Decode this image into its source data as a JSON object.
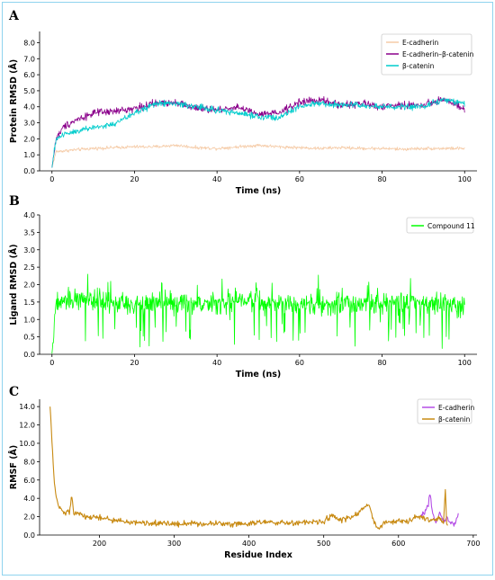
{
  "colors": {
    "frame": "#8fd3ee",
    "ecadherin_a": "#f5cba7",
    "complex_a": "#8b008b",
    "bcatenin_a": "#00cccc",
    "compound": "#00ff00",
    "ecadherin_c": "#b44de6",
    "bcatenin_c": "#c88a12"
  },
  "chart_data": [
    {
      "panel": "A",
      "type": "line",
      "xlabel": "Time (ns)",
      "ylabel": "Protein RMSD (Å)",
      "xlim": [
        -3,
        103
      ],
      "ylim": [
        0,
        8.7
      ],
      "xticks": [
        0,
        20,
        40,
        60,
        80,
        100
      ],
      "yticks": [
        0.0,
        1.0,
        2.0,
        3.0,
        4.0,
        5.0,
        6.0,
        7.0,
        8.0
      ],
      "xtick_labels": [
        "0",
        "20",
        "40",
        "60",
        "80",
        "100"
      ],
      "ytick_labels": [
        "0.0",
        "1.0",
        "2.0",
        "3.0",
        "4.0",
        "5.0",
        "6.0",
        "7.0",
        "8.0"
      ],
      "legend_position": "top-right",
      "grid": false,
      "series": [
        {
          "name": "E-cadherin",
          "color": "#f5cba7",
          "noise": 0.15,
          "x": [
            0,
            1,
            5,
            10,
            15,
            20,
            25,
            30,
            35,
            40,
            45,
            50,
            55,
            60,
            65,
            70,
            75,
            80,
            85,
            90,
            95,
            100
          ],
          "values": [
            0.2,
            1.2,
            1.3,
            1.4,
            1.45,
            1.5,
            1.5,
            1.6,
            1.45,
            1.4,
            1.5,
            1.6,
            1.5,
            1.45,
            1.4,
            1.45,
            1.4,
            1.4,
            1.35,
            1.4,
            1.4,
            1.4
          ]
        },
        {
          "name": "E-cadherin–β-catenin",
          "color": "#8b008b",
          "noise": 0.35,
          "x": [
            0,
            1,
            3,
            6,
            10,
            15,
            20,
            25,
            30,
            35,
            40,
            45,
            50,
            55,
            60,
            65,
            70,
            75,
            80,
            85,
            90,
            95,
            100
          ],
          "values": [
            0.2,
            2.0,
            2.8,
            3.2,
            3.6,
            3.7,
            3.9,
            4.2,
            4.3,
            3.9,
            3.8,
            4.0,
            3.5,
            3.6,
            4.3,
            4.4,
            4.1,
            4.2,
            4.0,
            4.1,
            4.1,
            4.5,
            3.8
          ]
        },
        {
          "name": "β-catenin",
          "color": "#00cccc",
          "noise": 0.3,
          "x": [
            0,
            1,
            3,
            6,
            10,
            15,
            20,
            25,
            30,
            35,
            40,
            45,
            50,
            55,
            60,
            65,
            70,
            75,
            80,
            85,
            90,
            95,
            100
          ],
          "values": [
            0.2,
            2.0,
            2.3,
            2.5,
            2.7,
            2.9,
            3.6,
            4.2,
            4.2,
            4.0,
            3.8,
            3.6,
            3.4,
            3.3,
            4.0,
            4.2,
            4.1,
            4.1,
            4.0,
            4.0,
            4.0,
            4.5,
            4.2
          ]
        }
      ]
    },
    {
      "panel": "B",
      "type": "line",
      "xlabel": "Time (ns)",
      "ylabel": "Ligand RMSD (Å)",
      "xlim": [
        -3,
        103
      ],
      "ylim": [
        0,
        4.0
      ],
      "xticks": [
        0,
        20,
        40,
        60,
        80,
        100
      ],
      "yticks": [
        0.0,
        0.5,
        1.0,
        1.5,
        2.0,
        2.5,
        3.0,
        3.5,
        4.0
      ],
      "xtick_labels": [
        "0",
        "20",
        "40",
        "60",
        "80",
        "100"
      ],
      "ytick_labels": [
        "0.0",
        "0.5",
        "1.0",
        "1.5",
        "2.0",
        "2.5",
        "3.0",
        "3.5",
        "4.0"
      ],
      "legend_position": "top-right",
      "grid": false,
      "series": [
        {
          "name": "Compound 11",
          "color": "#00ff00",
          "noise": 0.45,
          "x": [
            0,
            1,
            7,
            10,
            20,
            30,
            40,
            45,
            50,
            60,
            70,
            80,
            90,
            100
          ],
          "values": [
            0.0,
            1.5,
            1.6,
            1.5,
            1.45,
            1.5,
            1.45,
            1.55,
            1.5,
            1.45,
            1.45,
            1.5,
            1.45,
            1.45
          ]
        }
      ]
    },
    {
      "panel": "C",
      "type": "line",
      "xlabel": "Residue Index",
      "ylabel": "RMSF (Å)",
      "xlim": [
        120,
        705
      ],
      "ylim": [
        0,
        14.8
      ],
      "xticks": [
        200,
        300,
        400,
        500,
        600,
        700
      ],
      "yticks": [
        0.0,
        2.0,
        4.0,
        6.0,
        8.0,
        10.0,
        12.0,
        14.0
      ],
      "xtick_labels": [
        "200",
        "300",
        "400",
        "500",
        "600",
        "700"
      ],
      "ytick_labels": [
        "0.0",
        "2.0",
        "4.0",
        "6.0",
        "8.0",
        "10.0",
        "12.0",
        "14.0"
      ],
      "legend_position": "top-right",
      "grid": false,
      "series": [
        {
          "name": "E-cadherin",
          "color": "#b44de6",
          "noise": 0.35,
          "x": [
            630,
            635,
            640,
            642,
            645,
            650,
            655,
            660,
            665,
            670,
            675,
            680
          ],
          "values": [
            2.0,
            2.5,
            3.2,
            4.6,
            2.5,
            1.5,
            2.4,
            1.6,
            1.8,
            1.3,
            1.2,
            2.3
          ]
        },
        {
          "name": "β-catenin",
          "color": "#c88a12",
          "noise": 0.45,
          "x": [
            134,
            136,
            138,
            140,
            142,
            145,
            150,
            155,
            160,
            163,
            166,
            170,
            180,
            200,
            220,
            240,
            260,
            280,
            300,
            320,
            340,
            360,
            380,
            400,
            420,
            440,
            460,
            480,
            500,
            510,
            520,
            530,
            540,
            550,
            555,
            560,
            565,
            570,
            575,
            580,
            590,
            600,
            610,
            620,
            630,
            640,
            650,
            655,
            660,
            663,
            664,
            666
          ],
          "values": [
            14.0,
            11.0,
            8.0,
            5.5,
            4.2,
            3.2,
            2.6,
            2.4,
            2.6,
            4.2,
            2.2,
            2.4,
            2.0,
            1.9,
            1.6,
            1.4,
            1.3,
            1.3,
            1.2,
            1.3,
            1.2,
            1.3,
            1.2,
            1.3,
            1.4,
            1.3,
            1.3,
            1.4,
            1.4,
            2.2,
            1.6,
            1.8,
            2.0,
            2.6,
            3.0,
            3.5,
            2.0,
            1.0,
            0.6,
            1.4,
            1.3,
            1.6,
            1.4,
            1.8,
            2.0,
            1.6,
            1.6,
            2.0,
            1.2,
            5.2,
            1.5,
            1.0
          ]
        }
      ]
    }
  ]
}
